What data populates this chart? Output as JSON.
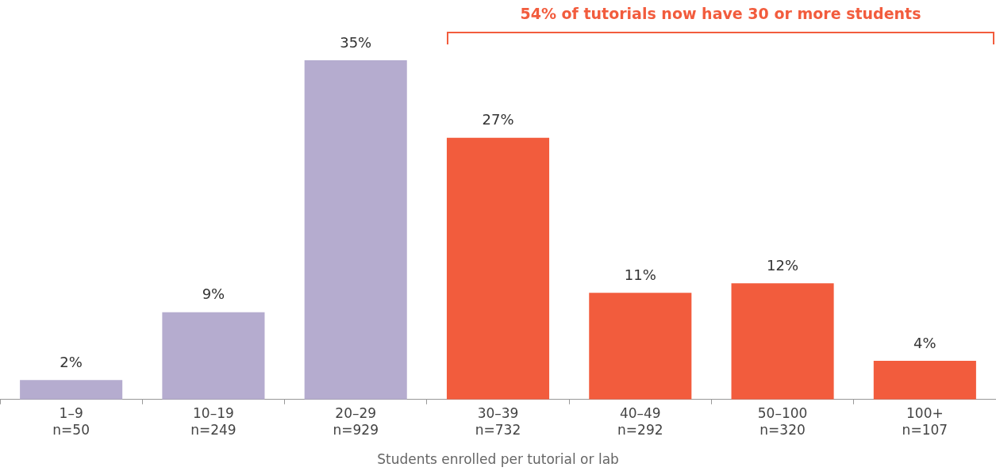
{
  "chart_data": {
    "type": "bar",
    "xlabel": "Students enrolled per tutorial or lab",
    "categories": [
      "1–9\nn=50",
      "10–19\nn=249",
      "20–29\nn=929",
      "30–39\nn=732",
      "40–49\nn=292",
      "50–100\nn=320",
      "100+\nn=107"
    ],
    "values": [
      2,
      9,
      35,
      27,
      11,
      12,
      4
    ],
    "colors": [
      "#b5accf",
      "#b5accf",
      "#b5accf",
      "#f25c3d",
      "#f25c3d",
      "#f25c3d",
      "#f25c3d"
    ],
    "value_labels": [
      "2%",
      "9%",
      "35%",
      "27%",
      "11%",
      "12%",
      "4%"
    ],
    "annotations": [
      "54% of tutorials now have 30 or more students"
    ],
    "grid": false,
    "legend": false
  }
}
